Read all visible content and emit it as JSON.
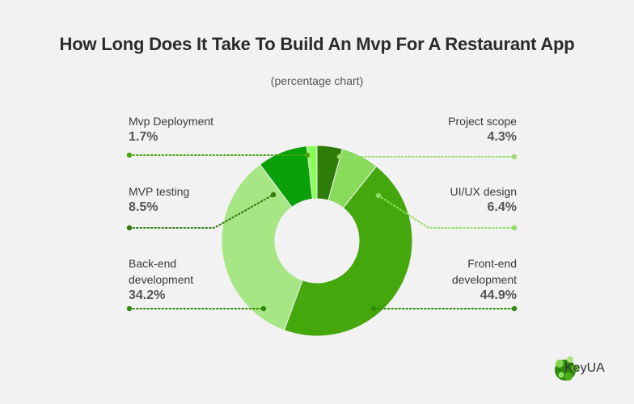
{
  "title": "How Long Does It Take To Build An Mvp For A Restaurant App",
  "subtitle": "(percentage chart)",
  "brand": "KeyUA",
  "colors": {
    "background": "#f2f2f2",
    "title": "#2b2b2b"
  },
  "chart_data": {
    "type": "pie",
    "donut": true,
    "title": "How Long Does It Take To Build An Mvp For A Restaurant App",
    "subtitle": "(percentage chart)",
    "slices": [
      {
        "name": "Project scope",
        "value": 4.3,
        "label": "4.3%",
        "color": "#2e7d0a"
      },
      {
        "name": "UI/UX design",
        "value": 6.4,
        "label": "6.4%",
        "color": "#87da5a"
      },
      {
        "name": "Front-end development",
        "value": 44.9,
        "label": "44.9%",
        "color": "#44a70c"
      },
      {
        "name": "Back-end development",
        "value": 34.2,
        "label": "34.2%",
        "color": "#a7e684"
      },
      {
        "name": "MVP testing",
        "value": 8.5,
        "label": "8.5%",
        "color": "#0aa00a"
      },
      {
        "name": "Mvp Deployment",
        "value": 1.7,
        "label": "1.7%",
        "color": "#8cff5a"
      }
    ],
    "legend": "callouts"
  }
}
